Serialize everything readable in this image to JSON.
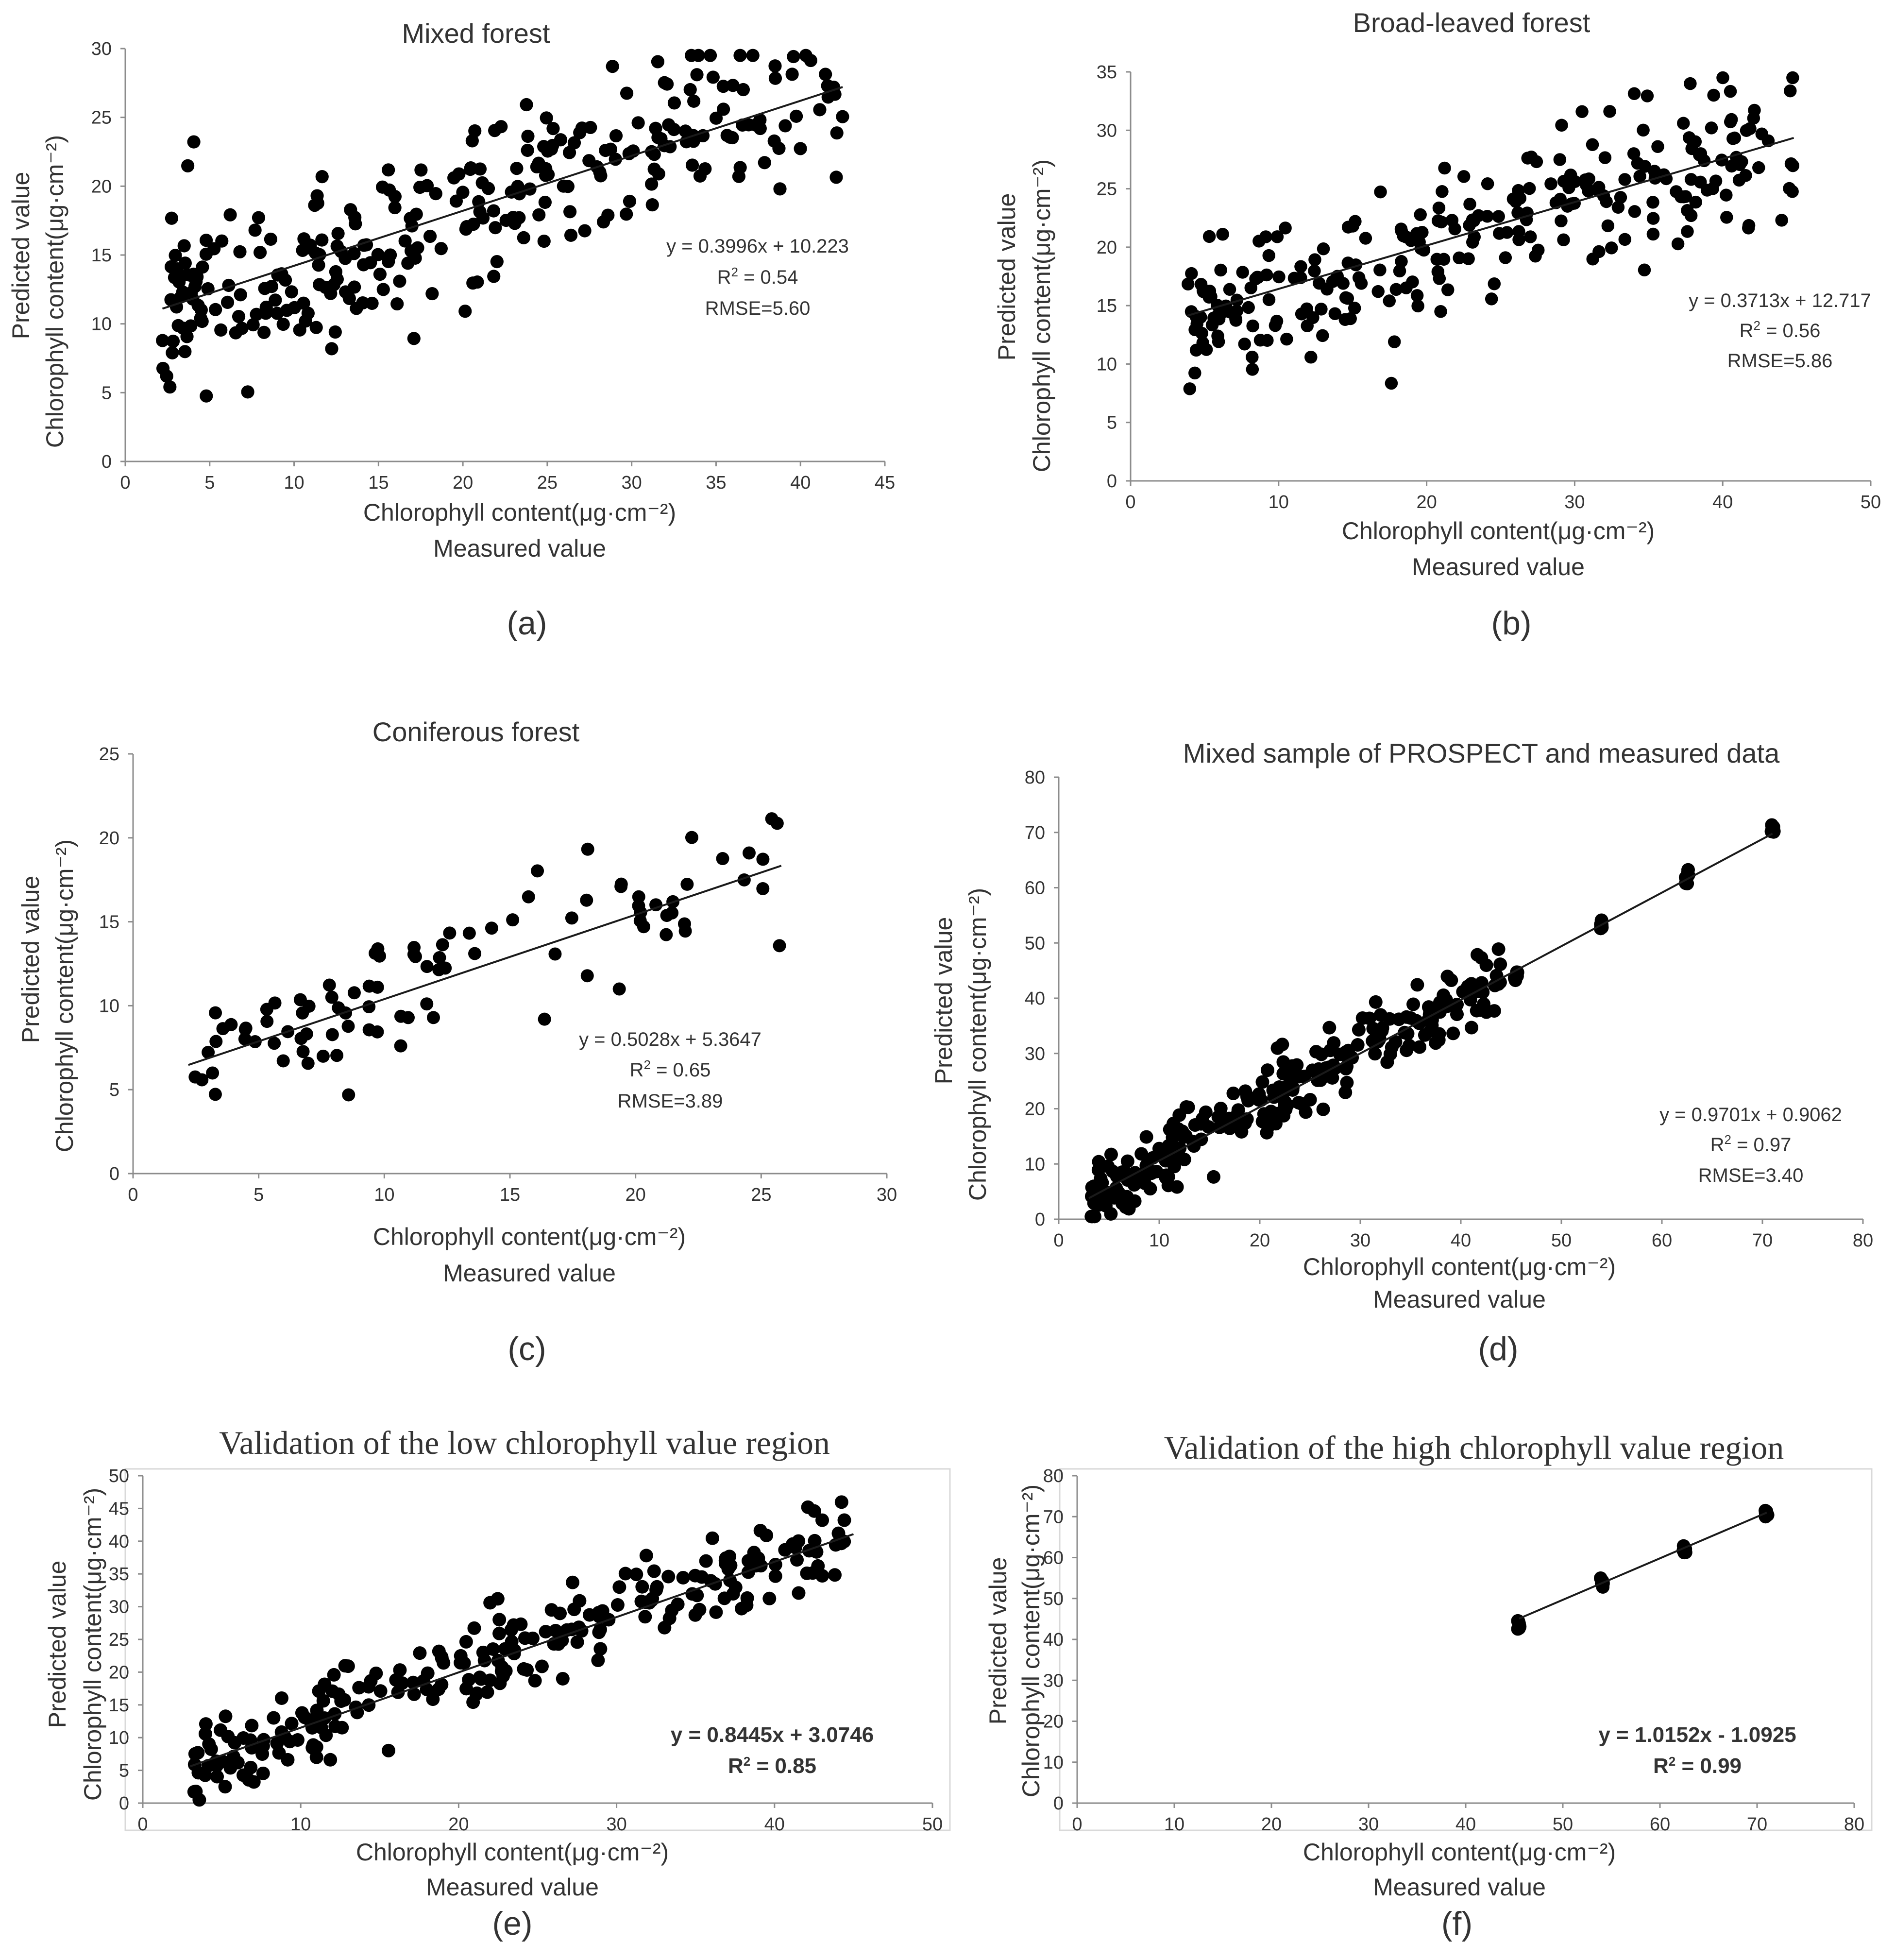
{
  "chart_data": [
    {
      "panel": "(a)",
      "type": "scatter",
      "title": "Mixed forest",
      "xlabel": "Chlorophyll content(μg·cm⁻²)",
      "xlabel2": "Measured value",
      "ylabel": "Chlorophyll content(μg·cm⁻²)",
      "ylabel2": "Predicted value",
      "xlim": [
        0,
        45
      ],
      "ylim": [
        0,
        30
      ],
      "xticks": [
        "0",
        "5",
        "10",
        "15",
        "20",
        "25",
        "30",
        "35",
        "40",
        "45"
      ],
      "yticks": [
        "0",
        "5",
        "10",
        "15",
        "20",
        "25",
        "30"
      ],
      "fit": {
        "slope": 0.3996,
        "intercept": 10.223,
        "x_range": [
          2.2,
          42.5
        ]
      },
      "equation": "y = 0.3996x + 10.223",
      "r2_label": "R",
      "r2_value": "= 0.54",
      "rmse": "RMSE=5.60",
      "points": {
        "n": 300,
        "x_min": 2.2,
        "x_max": 42.5,
        "noise_sd": 3.2,
        "seed": 11
      }
    },
    {
      "panel": "(b)",
      "type": "scatter",
      "title": "Broad-leaved forest",
      "xlabel": "Chlorophyll content(μg·cm⁻²)",
      "xlabel2": "Measured value",
      "ylabel": "Chlorophyll content(μg·cm⁻²)",
      "ylabel2": "Predicted value",
      "xlim": [
        0,
        50
      ],
      "ylim": [
        0,
        35
      ],
      "xticks": [
        "0",
        "10",
        "20",
        "30",
        "40",
        "50"
      ],
      "yticks": [
        "0",
        "5",
        "10",
        "15",
        "20",
        "25",
        "30",
        "35"
      ],
      "fit": {
        "slope": 0.3713,
        "intercept": 12.717,
        "x_range": [
          3.8,
          44.8
        ]
      },
      "equation": "y = 0.3713x + 12.717",
      "r2_label": "R",
      "r2_value": "= 0.56",
      "rmse": "RMSE=5.86",
      "points": {
        "n": 270,
        "x_min": 3.8,
        "x_max": 44.8,
        "noise_sd": 3.0,
        "seed": 23
      }
    },
    {
      "panel": "(c)",
      "type": "scatter",
      "title": "Coniferous forest",
      "xlabel": "Chlorophyll content(μg·cm⁻²)",
      "xlabel2": "Measured value",
      "ylabel": "Chlorophyll content(μg·cm⁻²)",
      "ylabel2": "Predicted value",
      "xlim": [
        0,
        30
      ],
      "ylim": [
        0,
        25
      ],
      "xticks": [
        "0",
        "5",
        "10",
        "15",
        "20",
        "25",
        "30"
      ],
      "yticks": [
        "0",
        "5",
        "10",
        "15",
        "20",
        "25"
      ],
      "fit": {
        "slope": 0.5028,
        "intercept": 5.3647,
        "x_range": [
          2.2,
          25.8
        ]
      },
      "equation": "y = 0.5028x + 5.3647",
      "r2_label": "R",
      "r2_value": "= 0.65",
      "rmse": "RMSE=3.89",
      "points": {
        "n": 95,
        "x_min": 2.2,
        "x_max": 25.8,
        "noise_sd": 2.0,
        "seed": 37
      }
    },
    {
      "panel": "(d)",
      "type": "scatter",
      "title": "Mixed sample of PROSPECT and measured data",
      "xlabel": "Chlorophyll content(μg·cm⁻²)",
      "xlabel2": "Measured value",
      "ylabel": "Chlorophyll content(μg·cm⁻²)",
      "ylabel2": "Predicted value",
      "xlim": [
        0,
        80
      ],
      "ylim": [
        0,
        80
      ],
      "xticks": [
        "0",
        "10",
        "20",
        "30",
        "40",
        "50",
        "60",
        "70",
        "80"
      ],
      "yticks": [
        "0",
        "10",
        "20",
        "30",
        "40",
        "50",
        "60",
        "70",
        "80"
      ],
      "fit": {
        "slope": 0.9701,
        "intercept": 0.9062,
        "x_range": [
          3,
          71
        ]
      },
      "equation": "y = 0.9701x + 0.9062",
      "r2_label": "R",
      "r2_value": "= 0.97",
      "rmse": "RMSE=3.40",
      "points": {
        "n": 240,
        "x_min": 3,
        "x_max": 44,
        "noise_sd": 3.5,
        "seed": 41,
        "clusters": [
          [
            37,
            36.5
          ],
          [
            45.5,
            43.5
          ],
          [
            54,
            54
          ],
          [
            62.5,
            62
          ],
          [
            71,
            71
          ]
        ]
      }
    },
    {
      "panel": "(e)",
      "type": "scatter",
      "title": "Validation of the low chlorophyll value region",
      "xlabel": "Chlorophyll content(μg·cm⁻²)",
      "xlabel2": "Measured value",
      "ylabel": "Chlorophyll content(μg·cm⁻²)",
      "ylabel2": "Predicted value",
      "xlim": [
        0,
        50
      ],
      "ylim": [
        0,
        50
      ],
      "xticks": [
        "0",
        "10",
        "20",
        "30",
        "40",
        "50"
      ],
      "yticks": [
        "0",
        "5",
        "10",
        "15",
        "20",
        "25",
        "30",
        "35",
        "40",
        "45",
        "50"
      ],
      "fit": {
        "slope": 0.8445,
        "intercept": 3.0746,
        "x_range": [
          3,
          45
        ]
      },
      "equation": "y = 0.8445x + 3.0746",
      "r2_label": "R",
      "r2_value": "= 0.85",
      "rmse": "",
      "points": {
        "n": 240,
        "x_min": 3,
        "x_max": 44.5,
        "noise_sd": 3.5,
        "seed": 41,
        "clusters": [
          [
            37,
            36.5
          ]
        ]
      }
    },
    {
      "panel": "(f)",
      "type": "scatter",
      "title": "Validation of the high chlorophyll value region",
      "xlabel": "Chlorophyll content(μg·cm⁻²)",
      "xlabel2": "Measured value",
      "ylabel": "Chlorophyll content(μg·cm⁻²)",
      "ylabel2": "Predicted value",
      "xlim": [
        0,
        80
      ],
      "ylim": [
        0,
        80
      ],
      "xticks": [
        "0",
        "10",
        "20",
        "30",
        "40",
        "50",
        "60",
        "70",
        "80"
      ],
      "yticks": [
        "0",
        "10",
        "20",
        "30",
        "40",
        "50",
        "60",
        "70",
        "80"
      ],
      "fit": {
        "slope": 1.0152,
        "intercept": -1.0925,
        "x_range": [
          45.5,
          71
        ]
      },
      "equation": "y = 1.0152x - 1.0925",
      "r2_label": "R",
      "r2_value": "= 0.99",
      "rmse": "",
      "points": {
        "n": 0,
        "x_min": 45.5,
        "x_max": 71,
        "noise_sd": 0,
        "seed": 5,
        "clusters": [
          [
            45.5,
            43.5
          ],
          [
            54,
            54
          ],
          [
            62.5,
            62
          ],
          [
            71,
            71
          ]
        ]
      }
    }
  ]
}
